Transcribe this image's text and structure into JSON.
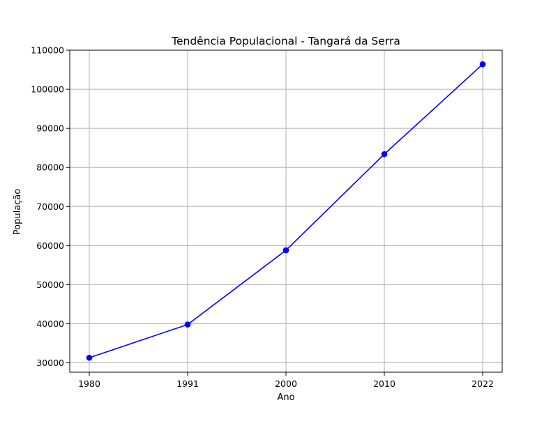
{
  "chart_data": {
    "type": "line",
    "title": "Tendência Populacional - Tangará da Serra",
    "xlabel": "Ano",
    "ylabel": "População",
    "categories": [
      "1980",
      "1991",
      "2000",
      "2010",
      "2022"
    ],
    "series": [
      {
        "values": [
          31300,
          39800,
          58800,
          83400,
          106400
        ],
        "color": "#0000ff",
        "marker": "circle"
      }
    ],
    "ylim": [
      27600,
      110000
    ],
    "yticks": [
      30000,
      40000,
      50000,
      60000,
      70000,
      80000,
      90000,
      100000,
      110000
    ],
    "ytick_labels": [
      "30000",
      "40000",
      "50000",
      "60000",
      "70000",
      "80000",
      "90000",
      "100000",
      "110000"
    ],
    "grid": true,
    "grid_color": "#b0b0b0"
  }
}
